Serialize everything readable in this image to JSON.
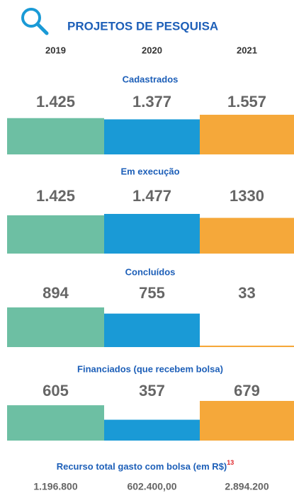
{
  "header": {
    "title": "PROJETOS DE PESQUISA"
  },
  "years": [
    "2019",
    "2020",
    "2021"
  ],
  "colors": [
    "#6dbfa3",
    "#1a9ad6",
    "#f5a83a"
  ],
  "sections": [
    {
      "title": "Cadastrados",
      "values": [
        1425,
        1377,
        1557
      ],
      "value_labels": [
        "1.425",
        "1.377",
        "1.557"
      ]
    },
    {
      "title": "Em execução",
      "values": [
        1425,
        1477,
        1330
      ],
      "value_labels": [
        "1.425",
        "1.477",
        "1330"
      ]
    },
    {
      "title": "Concluídos",
      "values": [
        894,
        755,
        33
      ]
    },
    {
      "title": "Financiados (que recebem bolsa)",
      "values": [
        605,
        357,
        679
      ]
    }
  ],
  "footer": {
    "title": "Recurso total gasto com bolsa (em R$)",
    "note": "13",
    "values": [
      1196800,
      602400,
      2894200
    ],
    "value_labels": [
      "1.196.800",
      "602.400,00",
      "2.894.200"
    ]
  }
}
